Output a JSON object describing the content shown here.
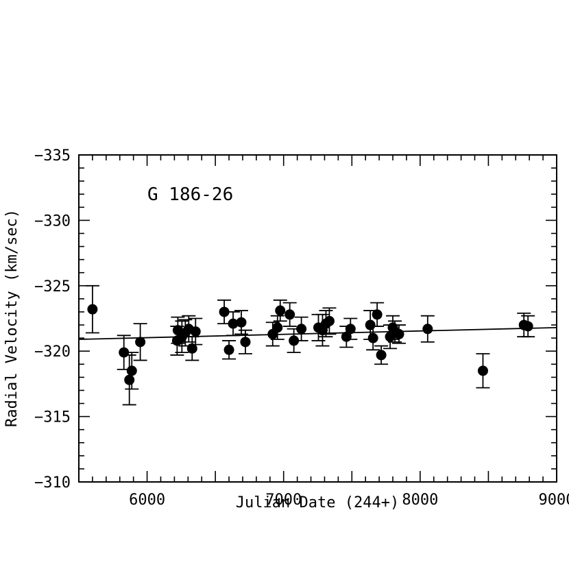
{
  "chart_data": {
    "type": "scatter",
    "title": "",
    "annotation": "G 186-26",
    "xlabel": "Julian Date (244+)",
    "ylabel": "Radial Velocity (km/sec)",
    "xlim": [
      5500,
      9000
    ],
    "ylim": [
      -310,
      -335
    ],
    "y_inverted": true,
    "xticks": [
      6000,
      7000,
      8000,
      9000
    ],
    "xtick_labels": [
      "6000",
      "7000",
      "8000",
      "9000"
    ],
    "yticks": [
      -335,
      -330,
      -325,
      -320,
      -315,
      -310
    ],
    "ytick_labels": [
      "−335",
      "−330",
      "−325",
      "−320",
      "−315",
      "−310"
    ],
    "grid": false,
    "legend": "none",
    "marker_color": "#000000",
    "series": [
      {
        "x": [
          5600,
          5830,
          5870,
          5888,
          5950,
          6220,
          6225,
          6255,
          6280,
          6305,
          6330,
          6355,
          6565,
          6600,
          6630,
          6690,
          6720,
          6920,
          6955,
          6975,
          7045,
          7075,
          7130,
          7255,
          7285,
          7310,
          7335,
          7460,
          7490,
          7635,
          7655,
          7685,
          7715,
          7780,
          7800,
          7815,
          7845,
          8055,
          8460,
          8760,
          8790
        ],
        "y": [
          -323.2,
          -319.9,
          -317.8,
          -318.5,
          -320.7,
          -320.8,
          -321.6,
          -321.1,
          -321.4,
          -321.7,
          -320.2,
          -321.5,
          -323.0,
          -320.1,
          -322.1,
          -322.2,
          -320.7,
          -321.3,
          -321.8,
          -323.1,
          -322.8,
          -320.8,
          -321.7,
          -321.8,
          -321.6,
          -322.1,
          -322.3,
          -321.1,
          -321.7,
          -322.0,
          -321.0,
          -322.8,
          -319.7,
          -321.1,
          -321.8,
          -321.5,
          -321.3,
          -321.7,
          -318.5,
          -322.0,
          -321.9
        ],
        "err": [
          1.8,
          1.3,
          1.9,
          1.4,
          1.4,
          1.1,
          1.0,
          1.2,
          1.0,
          1.0,
          0.9,
          1.0,
          0.9,
          0.7,
          0.9,
          0.9,
          0.9,
          0.9,
          0.9,
          0.8,
          0.9,
          0.9,
          0.9,
          1.0,
          1.2,
          1.0,
          1.0,
          0.8,
          0.8,
          1.1,
          0.9,
          0.9,
          0.7,
          0.9,
          0.9,
          0.8,
          0.7,
          1.0,
          1.3,
          0.9,
          0.8
        ]
      }
    ],
    "fit_line": {
      "x": [
        5500,
        9000
      ],
      "y": [
        -320.9,
        -321.8
      ]
    }
  }
}
